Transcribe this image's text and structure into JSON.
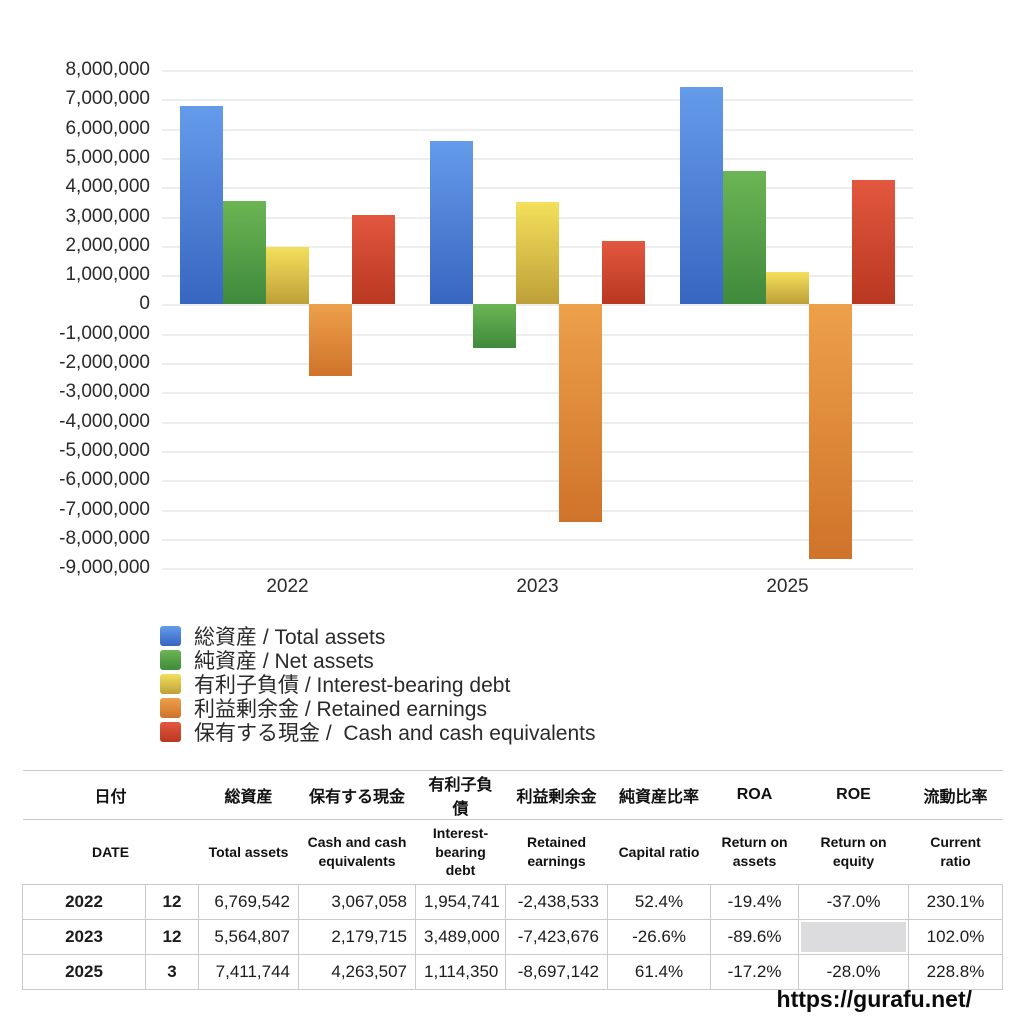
{
  "chart_data": {
    "type": "bar",
    "categories": [
      "2022",
      "2023",
      "2025"
    ],
    "series": [
      {
        "key": "total-assets",
        "name": "総資産 / Total assets",
        "color_top": "#659BEB",
        "color_bottom": "#3766C0",
        "values": [
          6769542,
          5564807,
          7411744
        ]
      },
      {
        "key": "net-assets",
        "name": "純資産 / Net assets",
        "color_top": "#6CB554",
        "color_bottom": "#3F8A3C",
        "values": [
          3547240,
          -1480239,
          4550811
        ]
      },
      {
        "key": "interest-bearing-debt",
        "name": "有利子負債 / Interest-bearing debt",
        "color_top": "#F4E05B",
        "color_bottom": "#BDA039",
        "values": [
          1954741,
          3489000,
          1114350
        ]
      },
      {
        "key": "retained-earnings",
        "name": "利益剰余金 / Retained earnings",
        "color_top": "#EDA04A",
        "color_bottom": "#CF732A",
        "values": [
          -2438533,
          -7423676,
          -8697142
        ]
      },
      {
        "key": "cash",
        "name": "保有する現金 /  Cash and cash equivalents",
        "color_top": "#E3573F",
        "color_bottom": "#B93821",
        "values": [
          3067058,
          2179715,
          4263507
        ]
      }
    ],
    "y_tick_labels": [
      "8,000,000",
      "7,000,000",
      "6,000,000",
      "5,000,000",
      "4,000,000",
      "3,000,000",
      "2,000,000",
      "1,000,000",
      "0",
      "-1,000,000",
      "-2,000,000",
      "-3,000,000",
      "-4,000,000",
      "-5,000,000",
      "-6,000,000",
      "-7,000,000",
      "-8,000,000",
      "-9,000,000"
    ],
    "ylim": [
      -9000000,
      8000000
    ],
    "grid": true,
    "legend_position": "bottom",
    "title": "",
    "xlabel": "",
    "ylabel": ""
  },
  "legend": {
    "items": [
      {
        "label": "総資産 / Total assets",
        "color_top": "#659BEB",
        "color_bottom": "#3766C0"
      },
      {
        "label": "純資産 / Net assets",
        "color_top": "#6CB554",
        "color_bottom": "#3F8A3C"
      },
      {
        "label": "有利子負債 / Interest-bearing debt",
        "color_top": "#F4E05B",
        "color_bottom": "#BDA039"
      },
      {
        "label": "利益剰余金 / Retained earnings",
        "color_top": "#EDA04A",
        "color_bottom": "#CF732A"
      },
      {
        "label": "保有する現金 /  Cash and cash equivalents",
        "color_top": "#E3573F",
        "color_bottom": "#B93821"
      }
    ]
  },
  "table": {
    "headers_jp": [
      "日付",
      "総資産",
      "保有する現金",
      "有利子負債",
      "利益剰余金",
      "純資産比率",
      "ROA",
      "ROE",
      "流動比率"
    ],
    "headers_en": [
      "DATE",
      "Total assets",
      "Cash and cash equivalents",
      "Interest-bearing debt",
      "Retained earnings",
      "Capital ratio",
      "Return on assets",
      "Return on equity",
      "Current ratio"
    ],
    "rows": [
      {
        "year": "2022",
        "month": "12",
        "total_assets": "6,769,542",
        "cash": "3,067,058",
        "debt": "1,954,741",
        "retained": "-2,438,533",
        "capital_ratio": "52.4%",
        "roa": "-19.4%",
        "roe": "-37.0%",
        "current_ratio": "230.1%"
      },
      {
        "year": "2023",
        "month": "12",
        "total_assets": "5,564,807",
        "cash": "2,179,715",
        "debt": "3,489,000",
        "retained": "-7,423,676",
        "capital_ratio": "-26.6%",
        "roa": "-89.6%",
        "roe": "",
        "current_ratio": "102.0%"
      },
      {
        "year": "2025",
        "month": "3",
        "total_assets": "7,411,744",
        "cash": "4,263,507",
        "debt": "1,114,350",
        "retained": "-8,697,142",
        "capital_ratio": "61.4%",
        "roa": "-17.2%",
        "roe": "-28.0%",
        "current_ratio": "228.8%"
      }
    ],
    "negative_color": "#c9463d",
    "missing_cell_color": "#dcdcde"
  },
  "footer": {
    "url": "https://gurafu.net/"
  }
}
